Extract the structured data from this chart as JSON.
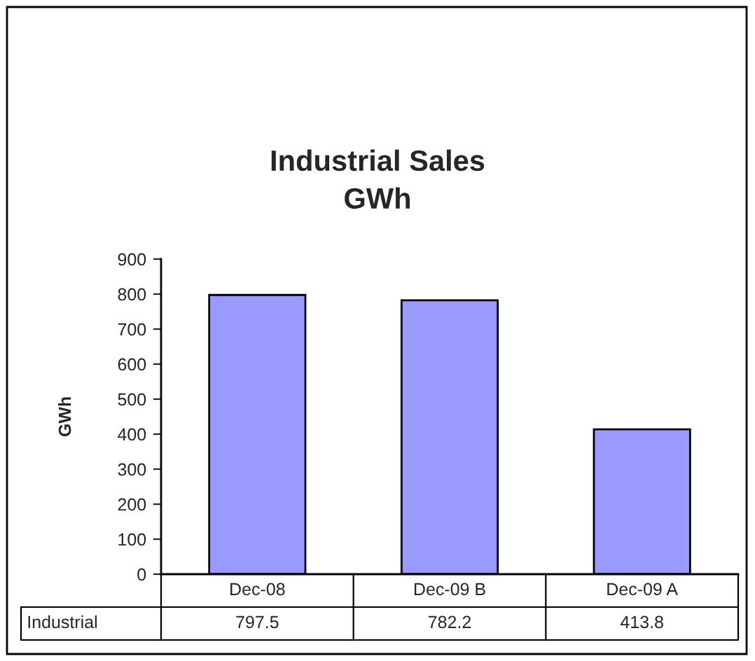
{
  "chart_data": {
    "type": "bar",
    "title": "Industrial Sales\nGWh",
    "ylabel": "GWh",
    "categories": [
      "Dec-08",
      "Dec-09 B",
      "Dec-09 A"
    ],
    "series": [
      {
        "name": "Industrial",
        "color": "#9999ff",
        "values": [
          797.5,
          782.2,
          413.8
        ]
      }
    ],
    "ylim": [
      0,
      900
    ],
    "yticks": [
      0,
      100,
      200,
      300,
      400,
      500,
      600,
      700,
      800,
      900
    ],
    "data_labels": true,
    "grid": false,
    "legend": "bottom"
  }
}
